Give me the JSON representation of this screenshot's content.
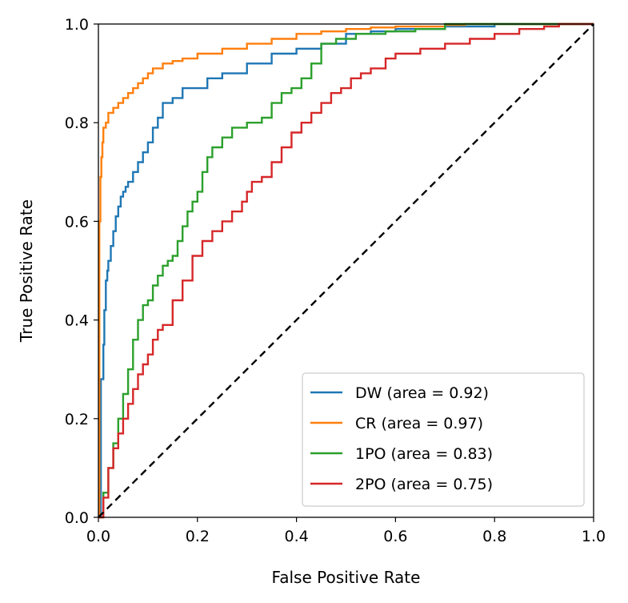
{
  "chart_data": {
    "type": "line",
    "title": "",
    "xlabel": "False Positive Rate",
    "ylabel": "True Positive Rate",
    "xlim": [
      0.0,
      1.0
    ],
    "ylim": [
      0.0,
      1.0
    ],
    "x_ticks": [
      "0.0",
      "0.2",
      "0.4",
      "0.6",
      "0.8",
      "1.0"
    ],
    "y_ticks": [
      "0.0",
      "0.2",
      "0.4",
      "0.6",
      "0.8",
      "1.0"
    ],
    "grid": false,
    "legend_position": "lower-right",
    "diagonal": {
      "x": [
        0,
        1
      ],
      "y": [
        0,
        1
      ],
      "color": "#000000",
      "style": "dashed"
    },
    "series": [
      {
        "name": "DW (area = 0.92)",
        "color": "#1f77b4",
        "x": [
          0,
          0.005,
          0.005,
          0.01,
          0.012,
          0.015,
          0.018,
          0.02,
          0.025,
          0.03,
          0.035,
          0.04,
          0.045,
          0.05,
          0.055,
          0.06,
          0.07,
          0.08,
          0.09,
          0.1,
          0.11,
          0.12,
          0.13,
          0.15,
          0.17,
          0.22,
          0.25,
          0.3,
          0.35,
          0.4,
          0.45,
          0.5,
          0.55,
          0.6,
          0.7,
          0.8,
          1.0
        ],
        "y": [
          0,
          0.1,
          0.28,
          0.35,
          0.42,
          0.48,
          0.5,
          0.52,
          0.55,
          0.58,
          0.61,
          0.63,
          0.65,
          0.66,
          0.67,
          0.68,
          0.7,
          0.72,
          0.74,
          0.76,
          0.79,
          0.81,
          0.84,
          0.85,
          0.87,
          0.89,
          0.9,
          0.92,
          0.94,
          0.95,
          0.96,
          0.98,
          0.985,
          0.99,
          0.995,
          1.0,
          1.0
        ]
      },
      {
        "name": "CR (area = 0.97)",
        "color": "#ff7f0e",
        "x": [
          0,
          0.002,
          0.004,
          0.006,
          0.008,
          0.01,
          0.015,
          0.02,
          0.03,
          0.04,
          0.05,
          0.06,
          0.07,
          0.08,
          0.09,
          0.1,
          0.11,
          0.13,
          0.15,
          0.17,
          0.2,
          0.25,
          0.3,
          0.35,
          0.4,
          0.45,
          0.5,
          0.55,
          0.6,
          0.7,
          0.74,
          0.8,
          1.0
        ],
        "y": [
          0,
          0.6,
          0.69,
          0.73,
          0.76,
          0.79,
          0.8,
          0.82,
          0.83,
          0.84,
          0.85,
          0.86,
          0.87,
          0.88,
          0.89,
          0.9,
          0.91,
          0.92,
          0.925,
          0.93,
          0.94,
          0.95,
          0.96,
          0.97,
          0.98,
          0.985,
          0.99,
          0.993,
          0.995,
          0.998,
          1.0,
          1.0,
          1.0
        ]
      },
      {
        "name": "1PO (area = 0.83)",
        "color": "#2ca02c",
        "x": [
          0,
          0.01,
          0.02,
          0.03,
          0.04,
          0.05,
          0.06,
          0.07,
          0.08,
          0.09,
          0.1,
          0.11,
          0.12,
          0.13,
          0.14,
          0.15,
          0.16,
          0.17,
          0.18,
          0.19,
          0.2,
          0.21,
          0.22,
          0.23,
          0.25,
          0.27,
          0.3,
          0.33,
          0.35,
          0.37,
          0.39,
          0.41,
          0.43,
          0.45,
          0.48,
          0.52,
          0.58,
          0.64,
          0.7,
          1.0
        ],
        "y": [
          0,
          0.05,
          0.1,
          0.15,
          0.2,
          0.25,
          0.3,
          0.36,
          0.4,
          0.43,
          0.44,
          0.47,
          0.49,
          0.51,
          0.52,
          0.53,
          0.56,
          0.59,
          0.62,
          0.64,
          0.66,
          0.7,
          0.73,
          0.75,
          0.77,
          0.79,
          0.8,
          0.81,
          0.84,
          0.86,
          0.87,
          0.89,
          0.92,
          0.96,
          0.97,
          0.98,
          0.985,
          0.99,
          1.0,
          1.0
        ]
      },
      {
        "name": "2PO (area = 0.75)",
        "color": "#d62728",
        "x": [
          0,
          0.01,
          0.02,
          0.03,
          0.04,
          0.05,
          0.06,
          0.07,
          0.08,
          0.09,
          0.1,
          0.11,
          0.12,
          0.13,
          0.15,
          0.17,
          0.19,
          0.21,
          0.23,
          0.25,
          0.27,
          0.29,
          0.3,
          0.31,
          0.33,
          0.35,
          0.37,
          0.39,
          0.41,
          0.43,
          0.45,
          0.47,
          0.49,
          0.51,
          0.53,
          0.55,
          0.58,
          0.6,
          0.65,
          0.7,
          0.75,
          0.8,
          0.85,
          0.9,
          0.93,
          1.0
        ],
        "y": [
          0,
          0.04,
          0.1,
          0.14,
          0.17,
          0.2,
          0.23,
          0.26,
          0.29,
          0.31,
          0.33,
          0.36,
          0.38,
          0.39,
          0.44,
          0.48,
          0.53,
          0.56,
          0.58,
          0.6,
          0.62,
          0.64,
          0.66,
          0.68,
          0.69,
          0.72,
          0.75,
          0.78,
          0.8,
          0.82,
          0.84,
          0.86,
          0.87,
          0.89,
          0.9,
          0.91,
          0.93,
          0.94,
          0.95,
          0.96,
          0.97,
          0.98,
          0.99,
          0.995,
          1.0,
          1.0
        ]
      }
    ]
  }
}
